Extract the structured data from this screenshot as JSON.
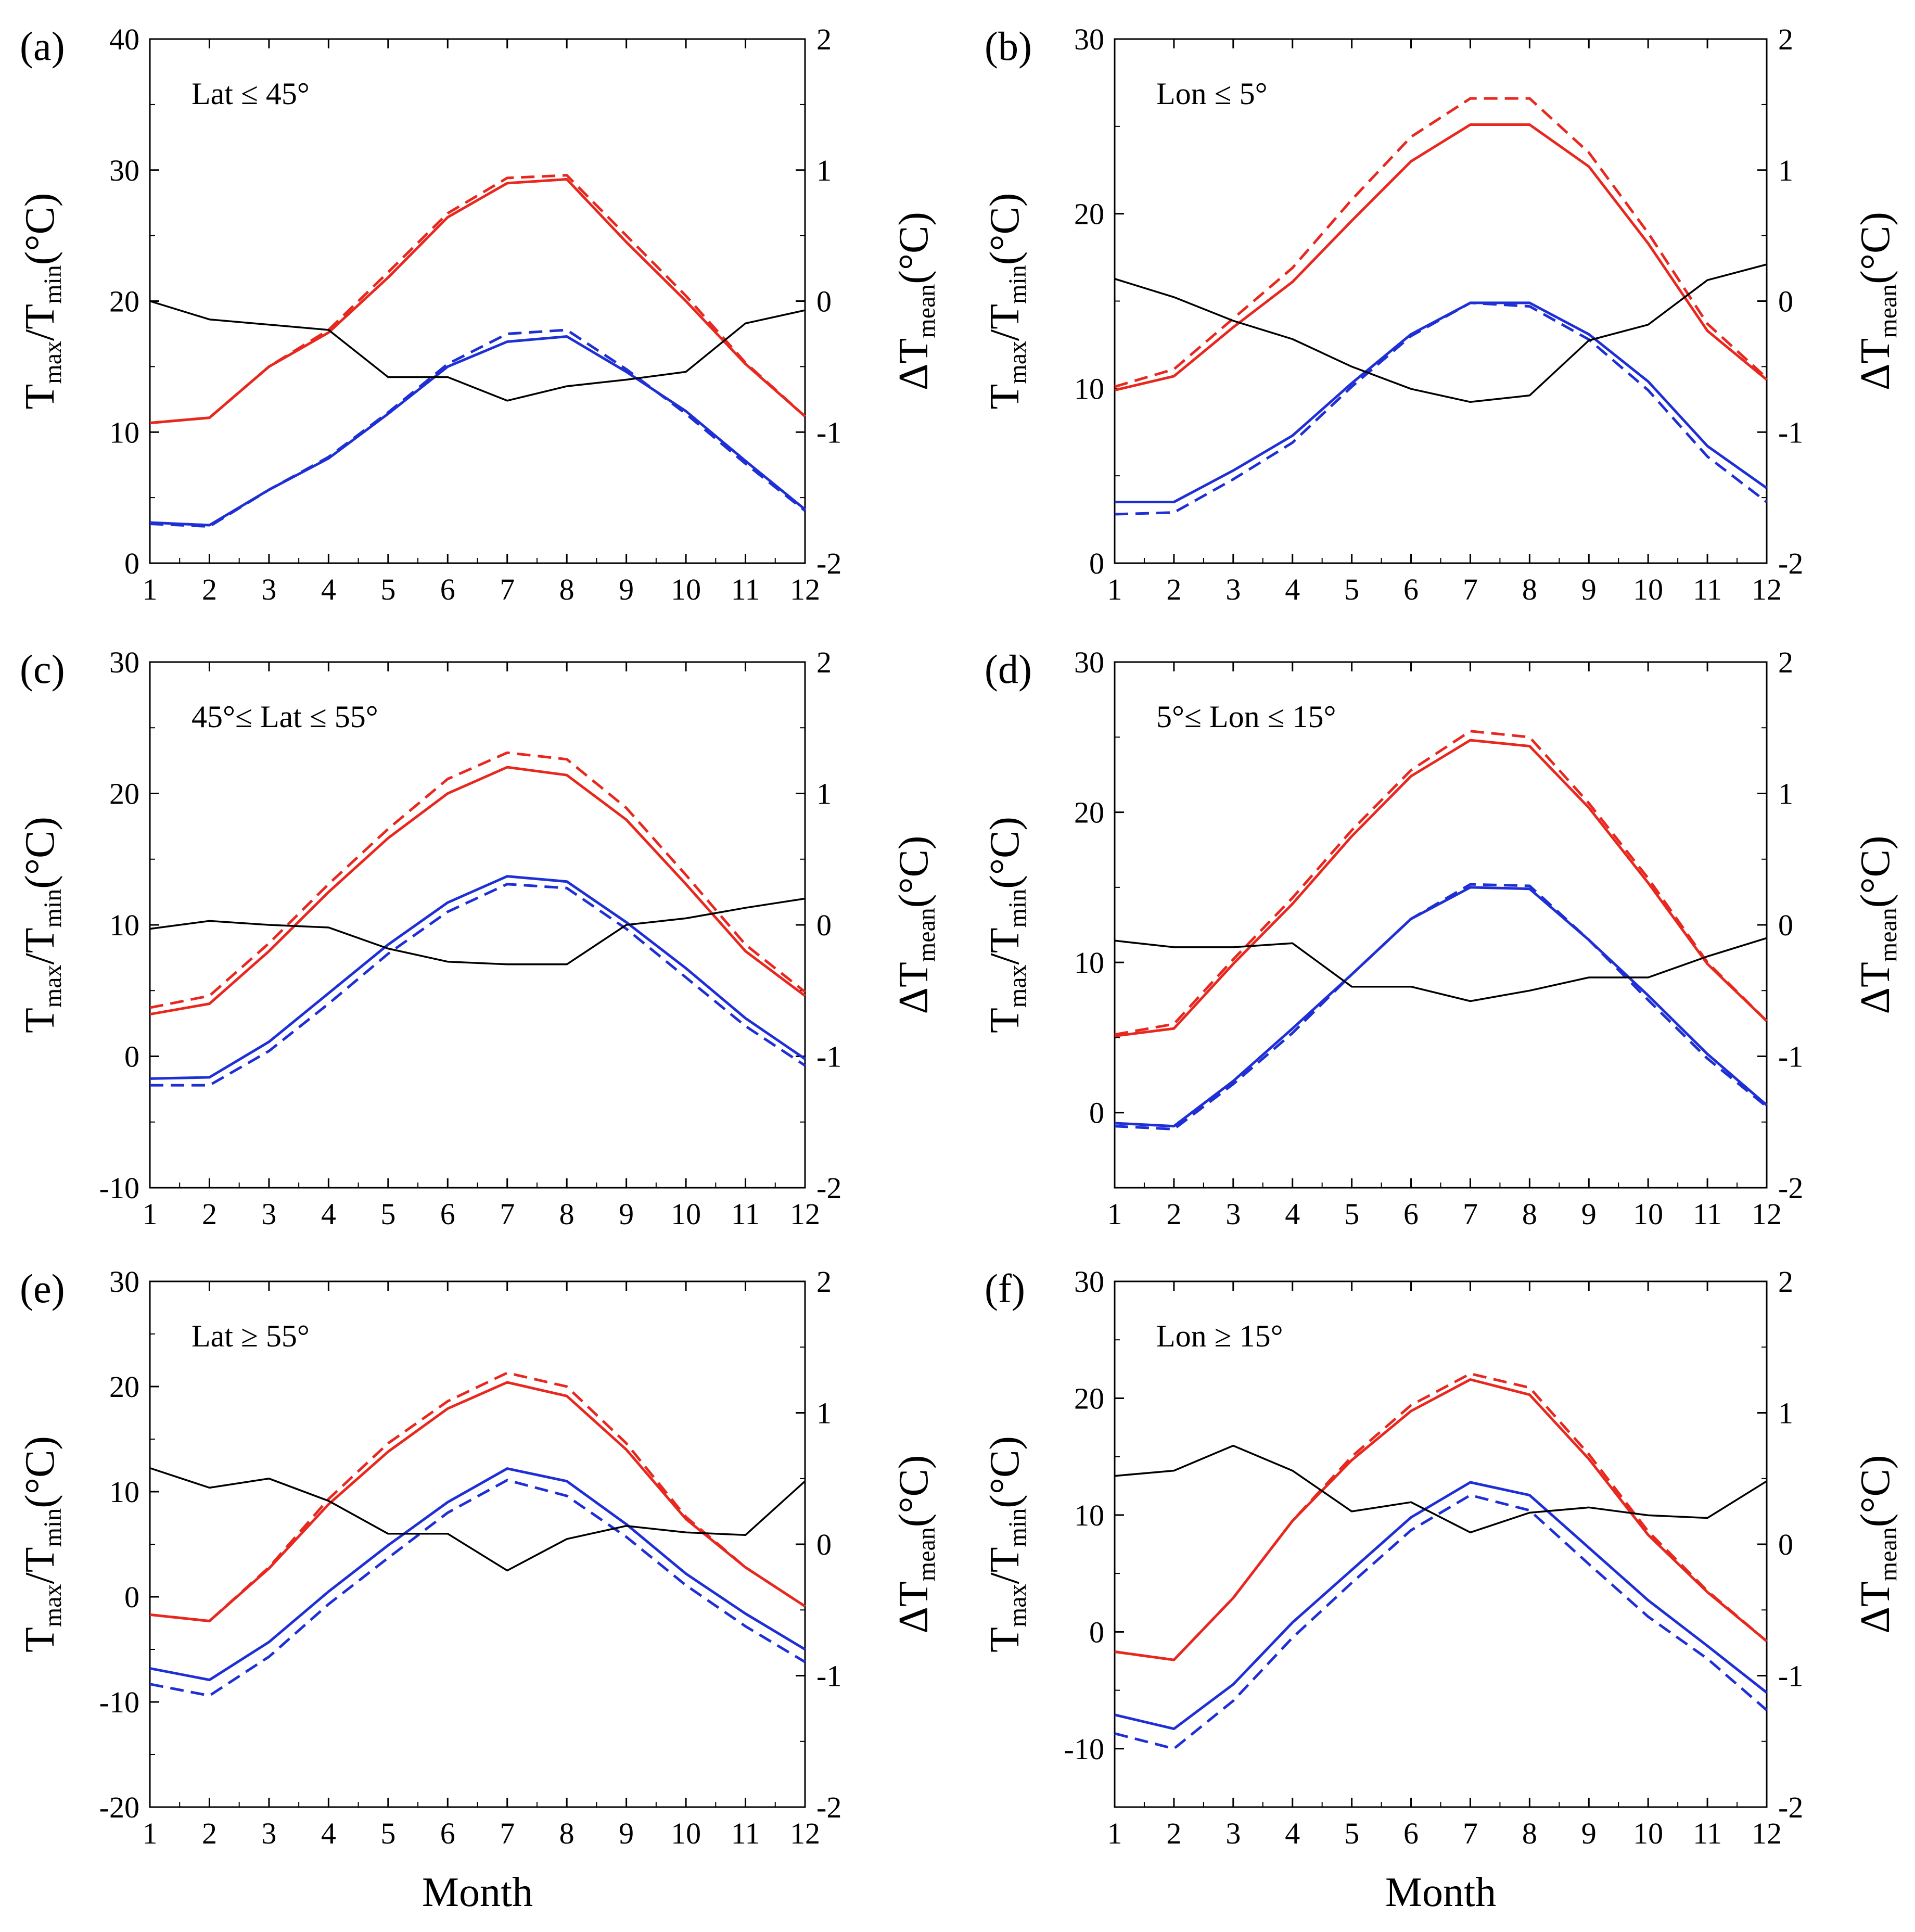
{
  "figure": {
    "xlabel_bottom": "Month"
  },
  "chart_data": [
    {
      "type": "line",
      "panel_label": "(a)",
      "annotation": "Lat ≤ 45°",
      "xlabel": "Month",
      "ylabel_left": "Tmax/Tmin(°C)",
      "ylabel_right": "ΔTmean(°C)",
      "ylim_left": [
        0,
        40
      ],
      "yticks_left": [
        0,
        10,
        20,
        30,
        40
      ],
      "ylim_right": [
        -2,
        2
      ],
      "yticks_right": [
        -2,
        -1,
        0,
        1,
        2
      ],
      "x": [
        1,
        2,
        3,
        4,
        5,
        6,
        7,
        8,
        9,
        10,
        11,
        12
      ],
      "show_xlabel": false,
      "series": [
        {
          "name": "Tmax solid",
          "axis": "left",
          "color": "#e8281e",
          "style": "solid",
          "values": [
            10.7,
            11.1,
            15.0,
            17.6,
            21.8,
            26.4,
            29.0,
            29.3,
            24.5,
            20.0,
            15.2,
            11.2
          ]
        },
        {
          "name": "Tmax dashed",
          "axis": "left",
          "color": "#e8281e",
          "style": "dashed",
          "values": [
            10.7,
            11.1,
            15.0,
            17.8,
            22.2,
            26.7,
            29.4,
            29.6,
            25.0,
            20.4,
            15.3,
            11.2
          ]
        },
        {
          "name": "Tmin solid",
          "axis": "left",
          "color": "#1f2fd6",
          "style": "solid",
          "values": [
            3.1,
            2.9,
            5.6,
            8.0,
            11.4,
            15.0,
            16.9,
            17.3,
            14.6,
            11.6,
            7.8,
            4.1
          ]
        },
        {
          "name": "Tmin dashed",
          "axis": "left",
          "color": "#1f2fd6",
          "style": "dashed",
          "values": [
            3.0,
            2.8,
            5.6,
            8.1,
            11.5,
            15.2,
            17.5,
            17.8,
            14.8,
            11.4,
            7.6,
            4.0
          ]
        },
        {
          "name": "ΔTmean",
          "axis": "right",
          "color": "#000000",
          "style": "thin",
          "values": [
            0.0,
            -0.14,
            -0.18,
            -0.22,
            -0.58,
            -0.58,
            -0.76,
            -0.65,
            -0.6,
            -0.54,
            -0.17,
            -0.07
          ]
        }
      ]
    },
    {
      "type": "line",
      "panel_label": "(b)",
      "annotation": "Lon ≤ 5°",
      "xlabel": "Month",
      "ylabel_left": "Tmax/Tmin(°C)",
      "ylabel_right": "ΔTmean(°C)",
      "ylim_left": [
        0,
        30
      ],
      "yticks_left": [
        0,
        10,
        20,
        30
      ],
      "ylim_right": [
        -2,
        2
      ],
      "yticks_right": [
        -2,
        -1,
        0,
        1,
        2
      ],
      "x": [
        1,
        2,
        3,
        4,
        5,
        6,
        7,
        8,
        9,
        10,
        11,
        12
      ],
      "show_xlabel": false,
      "series": [
        {
          "name": "Tmax solid",
          "axis": "left",
          "color": "#e8281e",
          "style": "solid",
          "values": [
            9.9,
            10.7,
            13.5,
            16.1,
            19.6,
            23.0,
            25.1,
            25.1,
            22.7,
            18.3,
            13.3,
            10.5
          ]
        },
        {
          "name": "Tmax dashed",
          "axis": "left",
          "color": "#e8281e",
          "style": "dashed",
          "values": [
            10.1,
            11.1,
            14.0,
            16.9,
            20.8,
            24.4,
            26.6,
            26.6,
            23.5,
            18.9,
            13.7,
            10.6
          ]
        },
        {
          "name": "Tmin solid",
          "axis": "left",
          "color": "#1f2fd6",
          "style": "solid",
          "values": [
            3.5,
            3.5,
            5.3,
            7.3,
            10.3,
            13.1,
            14.9,
            14.9,
            13.1,
            10.4,
            6.7,
            4.3
          ]
        },
        {
          "name": "Tmin dashed",
          "axis": "left",
          "color": "#1f2fd6",
          "style": "dashed",
          "values": [
            2.8,
            2.9,
            4.8,
            6.9,
            10.1,
            13.0,
            14.9,
            14.7,
            12.8,
            9.9,
            6.1,
            3.5
          ]
        },
        {
          "name": "ΔTmean",
          "axis": "right",
          "color": "#000000",
          "style": "thin",
          "values": [
            0.17,
            0.03,
            -0.15,
            -0.29,
            -0.5,
            -0.67,
            -0.77,
            -0.72,
            -0.3,
            -0.18,
            0.16,
            0.28
          ]
        }
      ]
    },
    {
      "type": "line",
      "panel_label": "(c)",
      "annotation": "45°≤ Lat ≤ 55°",
      "xlabel": "Month",
      "ylabel_left": "Tmax/Tmin(°C)",
      "ylabel_right": "ΔTmean(°C)",
      "ylim_left": [
        -10,
        30
      ],
      "yticks_left": [
        -10,
        0,
        10,
        20,
        30
      ],
      "ylim_right": [
        -2,
        2
      ],
      "yticks_right": [
        -2,
        -1,
        0,
        1,
        2
      ],
      "x": [
        1,
        2,
        3,
        4,
        5,
        6,
        7,
        8,
        9,
        10,
        11,
        12
      ],
      "show_xlabel": false,
      "series": [
        {
          "name": "Tmax solid",
          "axis": "left",
          "color": "#e8281e",
          "style": "solid",
          "values": [
            3.2,
            4.0,
            8.0,
            12.5,
            16.6,
            20.0,
            22.0,
            21.4,
            18.0,
            13.1,
            8.0,
            4.6
          ]
        },
        {
          "name": "Tmax dashed",
          "axis": "left",
          "color": "#e8281e",
          "style": "dashed",
          "values": [
            3.7,
            4.6,
            8.6,
            13.1,
            17.3,
            21.1,
            23.1,
            22.6,
            18.9,
            13.8,
            8.5,
            4.9
          ]
        },
        {
          "name": "Tmin solid",
          "axis": "left",
          "color": "#1f2fd6",
          "style": "solid",
          "values": [
            -1.7,
            -1.6,
            1.1,
            4.8,
            8.5,
            11.7,
            13.7,
            13.3,
            10.2,
            6.7,
            2.9,
            -0.2
          ]
        },
        {
          "name": "Tmin dashed",
          "axis": "left",
          "color": "#1f2fd6",
          "style": "dashed",
          "values": [
            -2.2,
            -2.2,
            0.4,
            4.0,
            7.8,
            11.0,
            13.1,
            12.8,
            9.7,
            6.0,
            2.3,
            -0.7
          ]
        },
        {
          "name": "ΔTmean",
          "axis": "right",
          "color": "#000000",
          "style": "thin",
          "values": [
            -0.03,
            0.03,
            0.0,
            -0.02,
            -0.18,
            -0.28,
            -0.3,
            -0.3,
            0.0,
            0.05,
            0.13,
            0.2
          ]
        }
      ]
    },
    {
      "type": "line",
      "panel_label": "(d)",
      "annotation": "5°≤ Lon ≤ 15°",
      "xlabel": "Month",
      "ylabel_left": "Tmax/Tmin(°C)",
      "ylabel_right": "ΔTmean(°C)",
      "ylim_left": [
        -5,
        30
      ],
      "yticks_left": [
        0,
        10,
        20,
        30
      ],
      "ylim_right": [
        -2,
        2
      ],
      "yticks_right": [
        -2,
        -1,
        0,
        1,
        2
      ],
      "x": [
        1,
        2,
        3,
        4,
        5,
        6,
        7,
        8,
        9,
        10,
        11,
        12
      ],
      "show_xlabel": false,
      "series": [
        {
          "name": "Tmax solid",
          "axis": "left",
          "color": "#e8281e",
          "style": "solid",
          "values": [
            5.1,
            5.6,
            9.9,
            13.9,
            18.4,
            22.4,
            24.8,
            24.4,
            20.3,
            15.3,
            9.9,
            6.1
          ]
        },
        {
          "name": "Tmax dashed",
          "axis": "left",
          "color": "#e8281e",
          "style": "dashed",
          "values": [
            5.2,
            5.9,
            10.2,
            14.3,
            18.8,
            22.8,
            25.4,
            25.0,
            20.6,
            15.6,
            10.0,
            6.1
          ]
        },
        {
          "name": "Tmin solid",
          "axis": "left",
          "color": "#1f2fd6",
          "style": "solid",
          "values": [
            -0.7,
            -0.9,
            2.1,
            5.6,
            9.2,
            12.9,
            15.0,
            14.9,
            11.5,
            7.8,
            3.9,
            0.5
          ]
        },
        {
          "name": "Tmin dashed",
          "axis": "left",
          "color": "#1f2fd6",
          "style": "dashed",
          "values": [
            -0.9,
            -1.1,
            1.9,
            5.3,
            9.2,
            12.9,
            15.2,
            15.1,
            11.5,
            7.5,
            3.6,
            0.4
          ]
        },
        {
          "name": "ΔTmean",
          "axis": "right",
          "color": "#000000",
          "style": "thin",
          "values": [
            -0.12,
            -0.17,
            -0.17,
            -0.14,
            -0.47,
            -0.47,
            -0.58,
            -0.5,
            -0.4,
            -0.4,
            -0.24,
            -0.1
          ]
        }
      ]
    },
    {
      "type": "line",
      "panel_label": "(e)",
      "annotation": "Lat ≥ 55°",
      "xlabel": "Month",
      "ylabel_left": "Tmax/Tmin(°C)",
      "ylabel_right": "ΔTmean(°C)",
      "ylim_left": [
        -20,
        30
      ],
      "yticks_left": [
        -20,
        -10,
        0,
        10,
        20,
        30
      ],
      "ylim_right": [
        -2,
        2
      ],
      "yticks_right": [
        -2,
        -1,
        0,
        1,
        2
      ],
      "x": [
        1,
        2,
        3,
        4,
        5,
        6,
        7,
        8,
        9,
        10,
        11,
        12
      ],
      "show_xlabel": true,
      "series": [
        {
          "name": "Tmax solid",
          "axis": "left",
          "color": "#e8281e",
          "style": "solid",
          "values": [
            -1.7,
            -2.3,
            2.7,
            8.8,
            13.8,
            17.9,
            20.4,
            19.1,
            14.0,
            7.4,
            2.8,
            -0.9
          ]
        },
        {
          "name": "Tmax dashed",
          "axis": "left",
          "color": "#e8281e",
          "style": "dashed",
          "values": [
            -1.7,
            -2.3,
            2.8,
            9.3,
            14.6,
            18.6,
            21.3,
            20.0,
            14.6,
            7.6,
            2.8,
            -0.9
          ]
        },
        {
          "name": "Tmin solid",
          "axis": "left",
          "color": "#1f2fd6",
          "style": "solid",
          "values": [
            -6.8,
            -7.9,
            -4.3,
            0.5,
            4.9,
            9.0,
            12.2,
            11.0,
            6.9,
            2.2,
            -1.6,
            -5.0
          ]
        },
        {
          "name": "Tmin dashed",
          "axis": "left",
          "color": "#1f2fd6",
          "style": "dashed",
          "values": [
            -8.3,
            -9.4,
            -5.7,
            -0.7,
            3.7,
            8.0,
            11.1,
            9.6,
            5.7,
            1.1,
            -2.8,
            -6.2
          ]
        },
        {
          "name": "ΔTmean",
          "axis": "right",
          "color": "#000000",
          "style": "thin",
          "values": [
            0.58,
            0.43,
            0.5,
            0.33,
            0.08,
            0.08,
            -0.2,
            0.04,
            0.14,
            0.09,
            0.07,
            0.48
          ]
        }
      ]
    },
    {
      "type": "line",
      "panel_label": "(f)",
      "annotation": "Lon ≥ 15°",
      "xlabel": "Month",
      "ylabel_left": "Tmax/Tmin(°C)",
      "ylabel_right": "ΔTmean(°C)",
      "ylim_left": [
        -15,
        30
      ],
      "yticks_left": [
        -10,
        0,
        10,
        20,
        30
      ],
      "ylim_right": [
        -2,
        2
      ],
      "yticks_right": [
        -2,
        -1,
        0,
        1,
        2
      ],
      "x": [
        1,
        2,
        3,
        4,
        5,
        6,
        7,
        8,
        9,
        10,
        11,
        12
      ],
      "show_xlabel": true,
      "series": [
        {
          "name": "Tmax solid",
          "axis": "left",
          "color": "#e8281e",
          "style": "solid",
          "values": [
            -1.7,
            -2.4,
            2.9,
            9.5,
            14.7,
            18.9,
            21.6,
            20.3,
            14.8,
            8.3,
            3.4,
            -0.8
          ]
        },
        {
          "name": "Tmax dashed",
          "axis": "left",
          "color": "#e8281e",
          "style": "dashed",
          "values": [
            -1.7,
            -2.4,
            2.9,
            9.5,
            15.0,
            19.4,
            22.1,
            20.9,
            15.2,
            8.6,
            3.5,
            -0.8
          ]
        },
        {
          "name": "Tmin solid",
          "axis": "left",
          "color": "#1f2fd6",
          "style": "solid",
          "values": [
            -7.1,
            -8.3,
            -4.5,
            0.8,
            5.3,
            9.8,
            12.8,
            11.7,
            7.2,
            2.7,
            -1.2,
            -5.2
          ]
        },
        {
          "name": "Tmin dashed",
          "axis": "left",
          "color": "#1f2fd6",
          "style": "dashed",
          "values": [
            -8.7,
            -10.0,
            -5.9,
            -0.5,
            4.2,
            8.7,
            11.7,
            10.4,
            5.8,
            1.3,
            -2.3,
            -6.7
          ]
        },
        {
          "name": "ΔTmean",
          "axis": "right",
          "color": "#000000",
          "style": "thin",
          "values": [
            0.52,
            0.56,
            0.75,
            0.56,
            0.25,
            0.32,
            0.09,
            0.24,
            0.28,
            0.22,
            0.2,
            0.48
          ]
        }
      ]
    }
  ]
}
